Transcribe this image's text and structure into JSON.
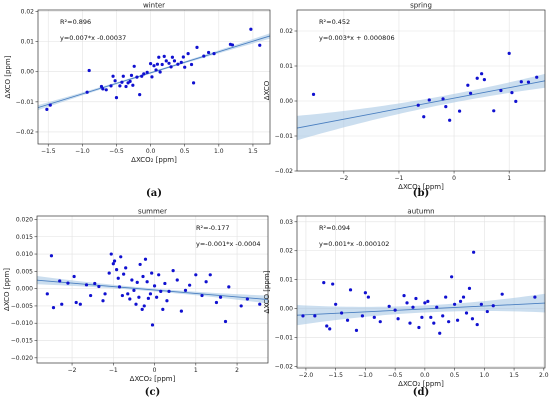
{
  "figure": {
    "panel_labels": [
      "(a)",
      "(b)",
      "(c)",
      "(d)"
    ]
  },
  "chart_data": [
    {
      "type": "scatter",
      "title": "winter",
      "panel_label": "(a)",
      "xlabel": "ΔXCO₂ [ppm]",
      "ylabel": "ΔXCO [ppm]",
      "xlim": [
        -1.65,
        1.75
      ],
      "ylim": [
        -0.024,
        0.0205
      ],
      "xticks": [
        -1.5,
        -1.0,
        -0.5,
        0.0,
        0.5,
        1.0,
        1.5
      ],
      "xtick_labels": [
        "−1.5",
        "−1.0",
        "−0.5",
        "0.0",
        "0.5",
        "1.0",
        "1.5"
      ],
      "yticks": [
        -0.02,
        -0.01,
        0.0,
        0.01,
        0.02
      ],
      "ytick_labels": [
        "−0.02",
        "−0.01",
        "0.00",
        "0.01",
        "0.02"
      ],
      "annotations": [
        "R²=0.896",
        "y=0.007*x -0.00037"
      ],
      "annotation_position": "top-left",
      "regression": {
        "slope": 0.007,
        "intercept": -0.00037,
        "r2": 0.896,
        "band": 0.0009
      },
      "grid": true,
      "colors": {
        "points": "#1010d0",
        "line": "#4a7fc0",
        "band": "#a8c8e4"
      },
      "points": [
        [
          -1.52,
          -0.0125
        ],
        [
          -1.47,
          -0.0111
        ],
        [
          -0.93,
          -0.0068
        ],
        [
          -0.9,
          0.0004
        ],
        [
          -0.72,
          -0.0049
        ],
        [
          -0.7,
          -0.0057
        ],
        [
          -0.65,
          -0.006
        ],
        [
          -0.58,
          -0.0047
        ],
        [
          -0.55,
          -0.0015
        ],
        [
          -0.52,
          -0.003
        ],
        [
          -0.5,
          -0.0086
        ],
        [
          -0.45,
          -0.0047
        ],
        [
          -0.42,
          -0.0035
        ],
        [
          -0.4,
          -0.0015
        ],
        [
          -0.36,
          -0.0049
        ],
        [
          -0.33,
          -0.0037
        ],
        [
          -0.3,
          -0.0032
        ],
        [
          -0.28,
          -0.0012
        ],
        [
          -0.26,
          -0.0045
        ],
        [
          -0.24,
          0.0018
        ],
        [
          -0.2,
          -0.0018
        ],
        [
          -0.16,
          -0.0076
        ],
        [
          -0.13,
          -0.0015
        ],
        [
          -0.1,
          -0.0007
        ],
        [
          -0.05,
          -0.0002
        ],
        [
          0.0,
          0.0027
        ],
        [
          0.02,
          -0.0017
        ],
        [
          0.05,
          0.002
        ],
        [
          0.08,
          0.0006
        ],
        [
          0.1,
          0.0025
        ],
        [
          0.12,
          0.0048
        ],
        [
          0.14,
          -0.0001
        ],
        [
          0.17,
          0.0024
        ],
        [
          0.2,
          0.0051
        ],
        [
          0.23,
          0.0036
        ],
        [
          0.27,
          0.0028
        ],
        [
          0.3,
          0.0016
        ],
        [
          0.32,
          0.0048
        ],
        [
          0.35,
          0.0036
        ],
        [
          0.4,
          0.0025
        ],
        [
          0.45,
          0.0031
        ],
        [
          0.48,
          0.0049
        ],
        [
          0.5,
          0.0015
        ],
        [
          0.55,
          0.006
        ],
        [
          0.6,
          0.0024
        ],
        [
          0.63,
          -0.0037
        ],
        [
          0.68,
          0.0081
        ],
        [
          0.78,
          0.0052
        ],
        [
          0.85,
          0.0064
        ],
        [
          0.93,
          0.006
        ],
        [
          1.17,
          0.0091
        ],
        [
          1.2,
          0.0089
        ],
        [
          1.47,
          0.0141
        ],
        [
          1.6,
          0.0088
        ]
      ]
    },
    {
      "type": "scatter",
      "title": "spring",
      "panel_label": "(b)",
      "xlabel": "ΔXCO₂ [ppm]",
      "ylabel": "ΔXCO",
      "xlim": [
        -2.85,
        1.65
      ],
      "ylim": [
        -0.02,
        0.026
      ],
      "xticks": [
        -2,
        -1,
        0,
        1
      ],
      "xtick_labels": [
        "−2",
        "−1",
        "0",
        "1"
      ],
      "yticks": [
        -0.02,
        -0.01,
        0.0,
        0.01,
        0.02
      ],
      "ytick_labels": [
        "−0.02",
        "−0.01",
        "0.00",
        "0.01",
        "0.02"
      ],
      "annotations": [
        "R²=0.452",
        "y=0.003*x + 0.000806"
      ],
      "annotation_position": "top-left",
      "regression": {
        "slope": 0.003,
        "intercept": 0.000806,
        "r2": 0.452,
        "band": 0.0035
      },
      "grid": true,
      "colors": {
        "points": "#1010d0",
        "line": "#4a7fc0",
        "band": "#a8c8e4"
      },
      "points": [
        [
          -2.55,
          0.0019
        ],
        [
          -0.65,
          -0.0012
        ],
        [
          -0.55,
          -0.0045
        ],
        [
          -0.45,
          0.0003
        ],
        [
          -0.2,
          0.0006
        ],
        [
          -0.15,
          -0.0016
        ],
        [
          -0.08,
          -0.0055
        ],
        [
          0.1,
          -0.0029
        ],
        [
          0.25,
          0.0045
        ],
        [
          0.3,
          0.0022
        ],
        [
          0.42,
          0.0065
        ],
        [
          0.5,
          0.0078
        ],
        [
          0.55,
          0.0061
        ],
        [
          0.72,
          -0.0028
        ],
        [
          0.85,
          0.003
        ],
        [
          1.0,
          0.0136
        ],
        [
          1.05,
          0.0024
        ],
        [
          1.12,
          -0.0001
        ],
        [
          1.22,
          0.0055
        ],
        [
          1.35,
          0.0054
        ],
        [
          1.5,
          0.0068
        ]
      ]
    },
    {
      "type": "scatter",
      "title": "summer",
      "panel_label": "(c)",
      "xlabel": "ΔXCO₂ [ppm]",
      "ylabel": "ΔXCO [ppm]",
      "xlim": [
        -2.85,
        2.75
      ],
      "ylim": [
        -0.0215,
        0.021
      ],
      "xticks": [
        -2,
        -1,
        0,
        1,
        2
      ],
      "xtick_labels": [
        "−2",
        "−1",
        "0",
        "1",
        "2"
      ],
      "yticks": [
        -0.02,
        -0.015,
        -0.01,
        -0.005,
        0.0,
        0.005,
        0.01,
        0.015,
        0.02
      ],
      "ytick_labels": [
        "−0.020",
        "−0.015",
        "−0.010",
        "−0.005",
        "0.000",
        "0.005",
        "0.010",
        "0.015",
        "0.020"
      ],
      "annotations": [
        "R²=-0.177",
        "y=-0.001*x -0.0004"
      ],
      "annotation_position": "top-right",
      "regression": {
        "slope": -0.001,
        "intercept": -0.0004,
        "r2": -0.177,
        "band": 0.0012
      },
      "grid": true,
      "colors": {
        "points": "#1010d0",
        "line": "#4a7fc0",
        "band": "#a8c8e4"
      },
      "points": [
        [
          -2.6,
          -0.0015
        ],
        [
          -2.5,
          0.0095
        ],
        [
          -2.45,
          -0.0055
        ],
        [
          -2.3,
          0.0022
        ],
        [
          -2.25,
          -0.0045
        ],
        [
          -2.1,
          0.0016
        ],
        [
          -1.95,
          0.0035
        ],
        [
          -1.9,
          -0.004
        ],
        [
          -1.8,
          -0.0045
        ],
        [
          -1.65,
          0.0011
        ],
        [
          -1.55,
          -0.002
        ],
        [
          -1.45,
          0.0015
        ],
        [
          -1.35,
          0.0006
        ],
        [
          -1.25,
          -0.0035
        ],
        [
          -1.2,
          -0.0015
        ],
        [
          -1.1,
          0.0045
        ],
        [
          -1.05,
          0.01
        ],
        [
          -1.0,
          0.0072
        ],
        [
          -0.97,
          0.008
        ],
        [
          -0.92,
          0.0055
        ],
        [
          -0.88,
          0.003
        ],
        [
          -0.85,
          0.0005
        ],
        [
          -0.82,
          0.0092
        ],
        [
          -0.78,
          -0.002
        ],
        [
          -0.75,
          0.0042
        ],
        [
          -0.7,
          0.006
        ],
        [
          -0.65,
          -0.0015
        ],
        [
          -0.6,
          -0.003
        ],
        [
          -0.55,
          0.0025
        ],
        [
          -0.5,
          -0.0005
        ],
        [
          -0.45,
          -0.0045
        ],
        [
          -0.42,
          0.0018
        ],
        [
          -0.38,
          -0.0025
        ],
        [
          -0.35,
          0.007
        ],
        [
          -0.3,
          -0.006
        ],
        [
          -0.28,
          0.0035
        ],
        [
          -0.25,
          -0.005
        ],
        [
          -0.22,
          0.0085
        ],
        [
          -0.18,
          0.002
        ],
        [
          -0.15,
          -0.0028
        ],
        [
          -0.1,
          -0.0015
        ],
        [
          -0.07,
          0.0045
        ],
        [
          -0.05,
          -0.0105
        ],
        [
          0.0,
          0.0008
        ],
        [
          0.05,
          -0.0025
        ],
        [
          0.1,
          0.004
        ],
        [
          0.15,
          -0.0008
        ],
        [
          0.2,
          -0.006
        ],
        [
          0.25,
          0.0015
        ],
        [
          0.3,
          -0.0035
        ],
        [
          0.35,
          -0.0008
        ],
        [
          0.45,
          0.0052
        ],
        [
          0.55,
          0.0025
        ],
        [
          0.65,
          -0.0065
        ],
        [
          0.75,
          -0.0005
        ],
        [
          0.85,
          0.001
        ],
        [
          1.0,
          0.004
        ],
        [
          1.15,
          -0.002
        ],
        [
          1.25,
          0.002
        ],
        [
          1.35,
          0.004
        ],
        [
          1.5,
          -0.004
        ],
        [
          1.6,
          -0.0025
        ],
        [
          1.72,
          -0.0095
        ],
        [
          1.8,
          0.0005
        ],
        [
          2.1,
          -0.005
        ],
        [
          2.25,
          -0.003
        ],
        [
          2.55,
          -0.0045
        ]
      ]
    },
    {
      "type": "scatter",
      "title": "autumn",
      "panel_label": "(d)",
      "xlabel": "ΔXCO₂ [ppm]",
      "ylabel": "ΔXCO [ppm]",
      "xlim": [
        -2.15,
        2.02
      ],
      "ylim": [
        -0.0205,
        0.032
      ],
      "xticks": [
        -2.0,
        -1.5,
        -1.0,
        -0.5,
        0.0,
        0.5,
        1.0,
        1.5,
        2.0
      ],
      "xtick_labels": [
        "−2.0",
        "−1.5",
        "−1.0",
        "−0.5",
        "0.0",
        "0.5",
        "1.0",
        "1.5",
        "2.0"
      ],
      "yticks": [
        -0.02,
        -0.01,
        0.0,
        0.01,
        0.02,
        0.03
      ],
      "ytick_labels": [
        "−0.02",
        "−0.01",
        "0.00",
        "0.01",
        "0.02",
        "0.03"
      ],
      "annotations": [
        "R²=0.094",
        "y=0.001*x -0.000102"
      ],
      "annotation_position": "top-left",
      "regression": {
        "slope": 0.001,
        "intercept": -0.000102,
        "r2": 0.094,
        "band": 0.0035
      },
      "grid": true,
      "colors": {
        "points": "#1010d0",
        "line": "#4a7fc0",
        "band": "#a8c8e4"
      },
      "points": [
        [
          -2.05,
          -0.0025
        ],
        [
          -1.85,
          -0.0025
        ],
        [
          -1.7,
          0.009
        ],
        [
          -1.65,
          -0.006
        ],
        [
          -1.6,
          -0.007
        ],
        [
          -1.55,
          0.0085
        ],
        [
          -1.5,
          0.0015
        ],
        [
          -1.4,
          -0.0015
        ],
        [
          -1.3,
          -0.004
        ],
        [
          -1.25,
          0.0065
        ],
        [
          -1.15,
          -0.0075
        ],
        [
          -1.05,
          -0.0025
        ],
        [
          -1.0,
          0.0055
        ],
        [
          -0.95,
          0.004
        ],
        [
          -0.85,
          -0.003
        ],
        [
          -0.75,
          -0.0045
        ],
        [
          -0.6,
          0.0008
        ],
        [
          -0.5,
          -0.0005
        ],
        [
          -0.45,
          -0.0035
        ],
        [
          -0.35,
          0.0045
        ],
        [
          -0.3,
          0.002
        ],
        [
          -0.25,
          -0.005
        ],
        [
          -0.2,
          0.0005
        ],
        [
          -0.15,
          0.0035
        ],
        [
          -0.1,
          -0.0065
        ],
        [
          -0.05,
          -0.003
        ],
        [
          0.0,
          0.002
        ],
        [
          0.05,
          0.0025
        ],
        [
          0.1,
          -0.003
        ],
        [
          0.15,
          -0.005
        ],
        [
          0.2,
          0.0005
        ],
        [
          0.25,
          -0.0085
        ],
        [
          0.3,
          -0.0025
        ],
        [
          0.35,
          0.004
        ],
        [
          0.4,
          -0.0045
        ],
        [
          0.45,
          0.011
        ],
        [
          0.5,
          0.0015
        ],
        [
          0.55,
          -0.004
        ],
        [
          0.6,
          0.0025
        ],
        [
          0.65,
          0.004
        ],
        [
          0.7,
          -0.0015
        ],
        [
          0.75,
          0.007
        ],
        [
          0.8,
          -0.0035
        ],
        [
          0.82,
          0.0195
        ],
        [
          0.88,
          -0.0055
        ],
        [
          0.95,
          0.0015
        ],
        [
          1.05,
          -0.001
        ],
        [
          1.15,
          0.001
        ],
        [
          1.3,
          0.005
        ],
        [
          1.85,
          0.004
        ]
      ]
    }
  ]
}
